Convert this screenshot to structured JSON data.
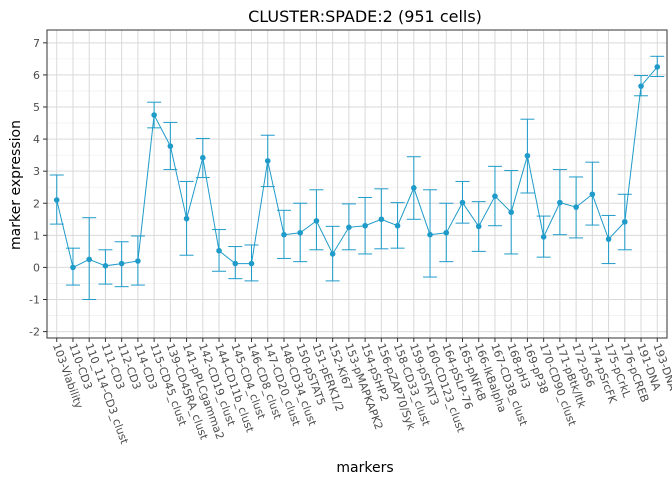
{
  "chart_data": {
    "type": "line",
    "title": "CLUSTER:SPADE:2 (951 cells)",
    "xlabel": "markers",
    "ylabel": "marker expression",
    "ylim": [
      -2.2,
      7.4
    ],
    "yticks": [
      -2,
      -1,
      0,
      1,
      2,
      3,
      4,
      5,
      6,
      7
    ],
    "grid": true,
    "colors": {
      "series": "#1f9bc9",
      "background": "#ffffff",
      "grid": "#d9d9d9",
      "panel_border": "#333333"
    },
    "categories": [
      "103-Viability",
      "110-CD3",
      "110_114-CD3_clust",
      "111-CD3",
      "112-CD3",
      "114-CD3",
      "115-CD45_clust",
      "139-CD45RA_clust",
      "141-pPLCgamma2",
      "142-CD19_clust",
      "144-CD11b_clust",
      "145-CD4_clust",
      "146-CD8_clust",
      "147-CD20_clust",
      "148-CD34_clust",
      "150-pSTAT5",
      "151-pERK1/2",
      "152-Ki67",
      "153-pMAPKAPK2",
      "154-pSHP2",
      "156-pZAP70/Syk",
      "158-CD33_clust",
      "159-pSTAT3",
      "160-CD123_clust",
      "164-pSLP-76",
      "165-pNFkB",
      "166-IkBalpha",
      "167-CD38_clust",
      "168-pH3",
      "169-pP38",
      "170-CD90_clust",
      "171-pBtk/Itk",
      "172-pS6",
      "174-pSrcFK",
      "175-pCrkL",
      "176-pCREB",
      "191-DNA",
      "193-DNA"
    ],
    "series": [
      {
        "values": [
          2.1,
          0.0,
          0.25,
          0.05,
          0.12,
          0.2,
          4.75,
          3.78,
          1.52,
          3.42,
          0.52,
          0.12,
          0.12,
          3.32,
          1.02,
          1.08,
          1.45,
          0.42,
          1.25,
          1.3,
          1.5,
          1.3,
          2.48,
          1.02,
          1.08,
          2.02,
          1.28,
          2.22,
          1.72,
          3.48,
          0.95,
          2.02,
          1.88,
          2.28,
          0.88,
          1.42,
          5.65,
          6.25
        ],
        "error_low": [
          1.35,
          -0.55,
          -1.0,
          -0.52,
          -0.6,
          -0.55,
          4.35,
          3.05,
          0.38,
          2.8,
          -0.12,
          -0.35,
          -0.42,
          2.52,
          0.28,
          0.18,
          0.55,
          -0.42,
          0.55,
          0.42,
          0.58,
          0.6,
          1.5,
          -0.3,
          0.18,
          1.38,
          0.5,
          1.3,
          0.42,
          2.32,
          0.32,
          1.02,
          0.92,
          1.32,
          0.12,
          0.55,
          5.35,
          5.95
        ],
        "error_high": [
          2.88,
          0.6,
          1.55,
          0.55,
          0.8,
          0.98,
          5.15,
          4.52,
          2.68,
          4.02,
          1.18,
          0.65,
          0.7,
          4.12,
          1.78,
          2.0,
          2.42,
          1.28,
          1.98,
          2.18,
          2.45,
          2.02,
          3.45,
          2.42,
          2.0,
          2.68,
          2.05,
          3.15,
          3.02,
          4.62,
          1.6,
          3.05,
          2.82,
          3.28,
          1.62,
          2.28,
          5.98,
          6.58
        ]
      }
    ]
  }
}
